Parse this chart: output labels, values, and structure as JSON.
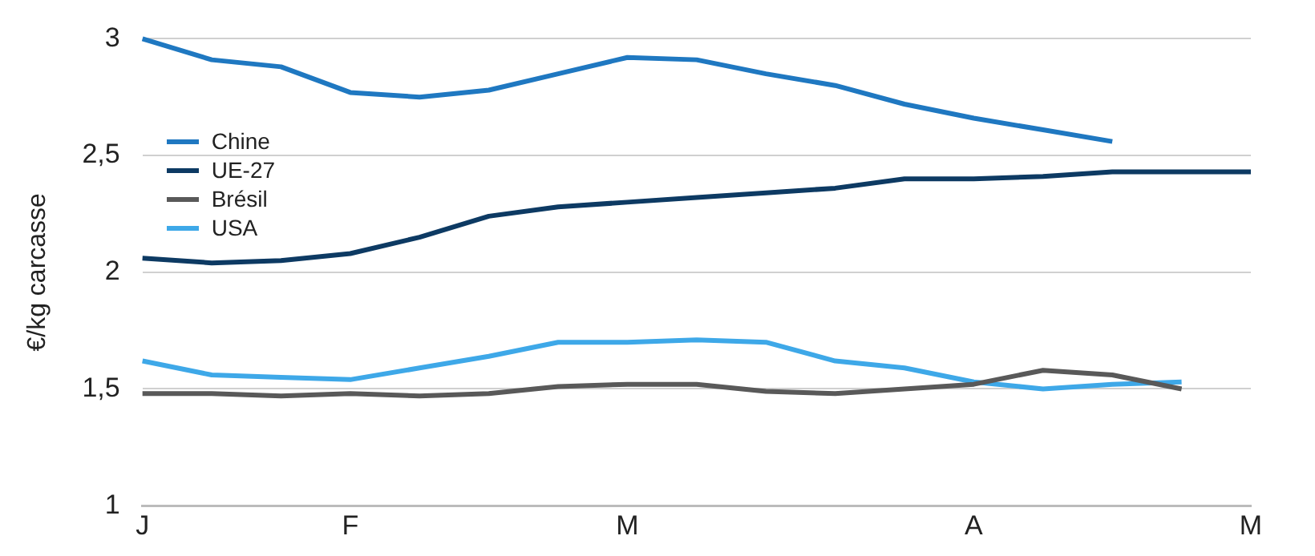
{
  "chart_data": {
    "type": "line",
    "ylabel": "€/kg carcasse",
    "categories": [
      "J",
      null,
      null,
      "F",
      null,
      null,
      null,
      "M",
      null,
      null,
      null,
      null,
      "A",
      null,
      null,
      null,
      "M"
    ],
    "series": [
      {
        "name": "Chine",
        "color": "#1f78c1",
        "values": [
          3.0,
          2.91,
          2.88,
          2.77,
          2.75,
          2.78,
          2.85,
          2.92,
          2.91,
          2.85,
          2.8,
          2.72,
          2.66,
          2.61,
          2.56,
          null,
          null
        ]
      },
      {
        "name": "UE-27",
        "color": "#0d3a63",
        "values": [
          2.06,
          2.04,
          2.05,
          2.08,
          2.15,
          2.24,
          2.28,
          2.3,
          2.32,
          2.34,
          2.36,
          2.4,
          2.4,
          2.41,
          2.43,
          2.43,
          2.43
        ]
      },
      {
        "name": "Brésil",
        "color": "#595959",
        "values": [
          1.48,
          1.48,
          1.47,
          1.48,
          1.47,
          1.48,
          1.51,
          1.52,
          1.52,
          1.49,
          1.48,
          1.5,
          1.52,
          1.58,
          1.56,
          1.5,
          null
        ]
      },
      {
        "name": "USA",
        "color": "#3ea8e8",
        "values": [
          1.62,
          1.56,
          1.55,
          1.54,
          1.59,
          1.64,
          1.7,
          1.7,
          1.71,
          1.7,
          1.62,
          1.59,
          1.53,
          1.5,
          1.52,
          1.53,
          null
        ]
      }
    ],
    "ylim": [
      1,
      3
    ],
    "yticks": [
      1,
      {
        "value": 1.5,
        "label": "1,5"
      },
      2,
      {
        "value": 2.5,
        "label": "2,5"
      },
      3
    ],
    "grid": "y",
    "legend": "top left",
    "marker": "none",
    "line_style": "solid"
  }
}
